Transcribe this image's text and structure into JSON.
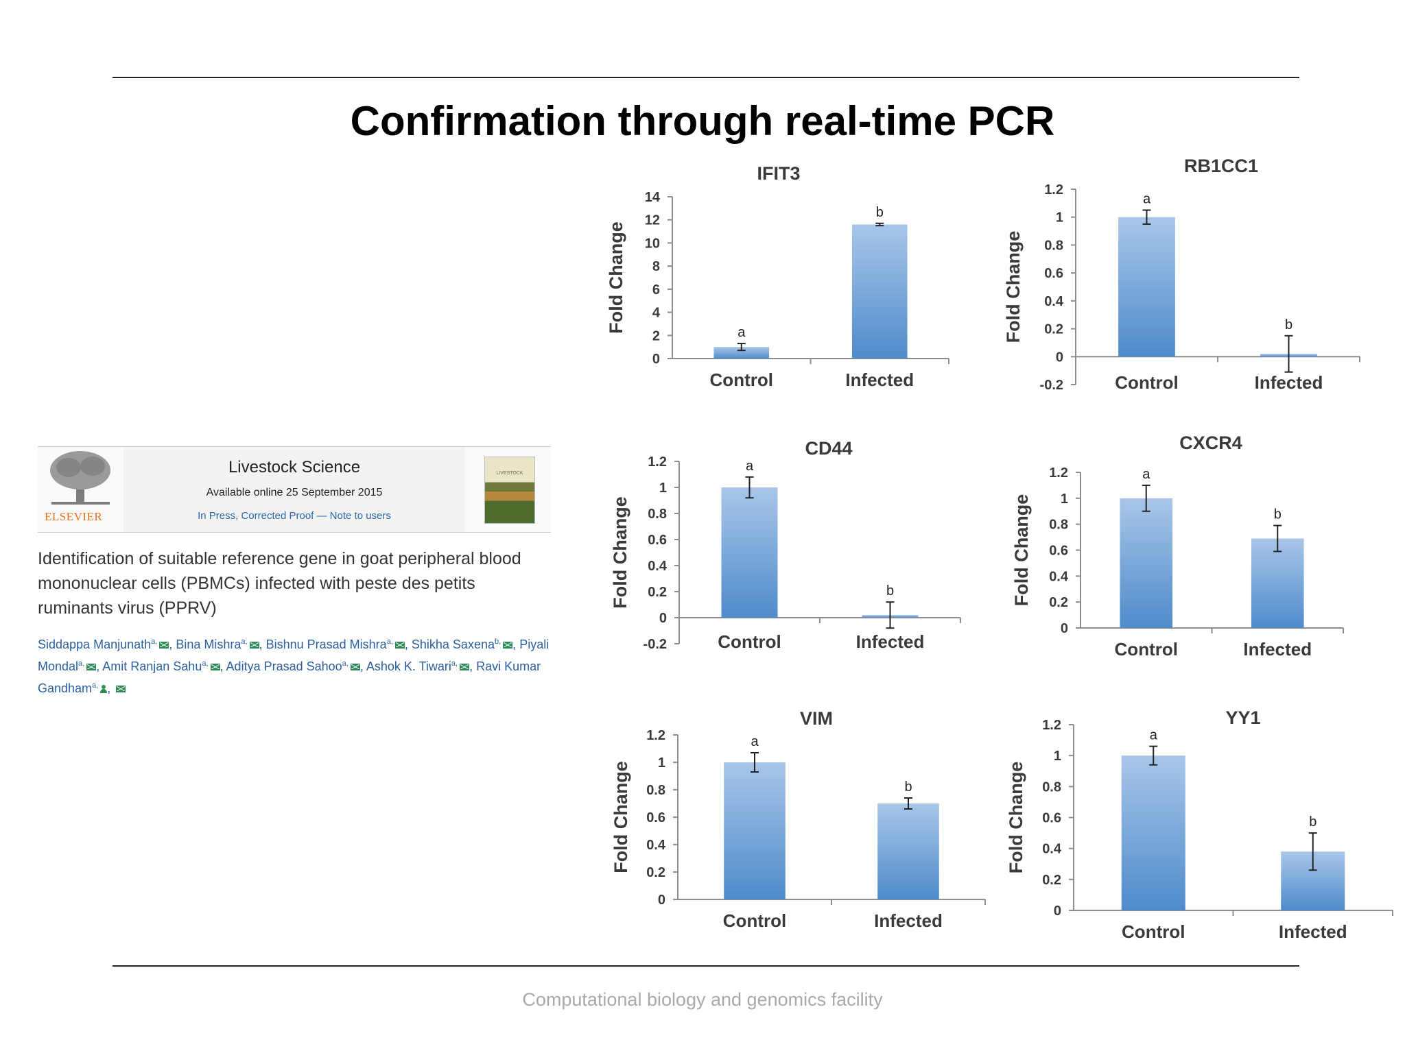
{
  "slide": {
    "title": "Confirmation through real-time PCR",
    "footer": "Computational biology and genomics facility"
  },
  "journal": {
    "publisher": "ELSEVIER",
    "name": "Livestock Science",
    "available": "Available online 25 September 2015",
    "press": "In Press, Corrected Proof — Note to users",
    "cover_text": "LIVESTOCK"
  },
  "paper": {
    "title": "Identification of suitable reference gene in goat peripheral blood mononuclear cells (PBMCs) infected with peste des petits ruminants virus (PPRV)",
    "authors": [
      {
        "name": "Siddappa Manjunath",
        "sup": "a,"
      },
      {
        "name": "Bina Mishra",
        "sup": "a,"
      },
      {
        "name": "Bishnu Prasad Mishra",
        "sup": "a,"
      },
      {
        "name": "Shikha Saxena",
        "sup": "b,"
      },
      {
        "name": "Piyali Mondal",
        "sup": "a,"
      },
      {
        "name": "Amit Ranjan Sahu",
        "sup": "a,"
      },
      {
        "name": "Aditya Prasad Sahoo",
        "sup": "a,"
      },
      {
        "name": "Ashok K. Tiwari",
        "sup": "a,"
      },
      {
        "name": "Ravi Kumar Gandham",
        "sup": "a,"
      }
    ]
  },
  "colors": {
    "bar_light": "#a9c6e8",
    "bar_dark": "#4f8bcb",
    "axis": "#8c8c8c",
    "text": "#3a3a3a"
  },
  "chart_data": [
    {
      "type": "bar",
      "title": "IFIT3",
      "ylabel": "Fold Change",
      "categories": [
        "Control",
        "Infected"
      ],
      "values": [
        1,
        11.6
      ],
      "errors": [
        0.3,
        0.1
      ],
      "annotations": [
        "a",
        "b"
      ],
      "ylim": [
        0,
        14
      ],
      "ticks": [
        0,
        2,
        4,
        6,
        8,
        10,
        12,
        14
      ],
      "tick_labels": [
        "0",
        "2",
        "4",
        "6",
        "8",
        "10",
        "12",
        "14"
      ]
    },
    {
      "type": "bar",
      "title": "RB1CC1",
      "ylabel": "Fold Change",
      "categories": [
        "Control",
        "Infected"
      ],
      "values": [
        1,
        0.02
      ],
      "errors": [
        0.05,
        0.13
      ],
      "annotations": [
        "a",
        "b"
      ],
      "ylim": [
        -0.2,
        1.2
      ],
      "ticks": [
        -0.2,
        0,
        0.2,
        0.4,
        0.6,
        0.8,
        1,
        1.2
      ],
      "tick_labels": [
        "-0.2",
        "0",
        "0.2",
        "0.4",
        "0.6",
        "0.8",
        "1",
        "1.2"
      ]
    },
    {
      "type": "bar",
      "title": "CD44",
      "ylabel": "Fold Change",
      "categories": [
        "Control",
        "Infected"
      ],
      "values": [
        1,
        0.02
      ],
      "errors": [
        0.08,
        0.1
      ],
      "annotations": [
        "a",
        "b"
      ],
      "ylim": [
        -0.2,
        1.2
      ],
      "ticks": [
        -0.2,
        0,
        0.2,
        0.4,
        0.6,
        0.8,
        1,
        1.2
      ],
      "tick_labels": [
        "-0.2",
        "0",
        "0.2",
        "0.4",
        "0.6",
        "0.8",
        "1",
        "1.2"
      ]
    },
    {
      "type": "bar",
      "title": "CXCR4",
      "ylabel": "Fold Change",
      "categories": [
        "Control",
        "Infected"
      ],
      "values": [
        1,
        0.69
      ],
      "errors": [
        0.1,
        0.1
      ],
      "annotations": [
        "a",
        "b"
      ],
      "ylim": [
        0,
        1.2
      ],
      "ticks": [
        0,
        0.2,
        0.4,
        0.6,
        0.8,
        1,
        1.2
      ],
      "tick_labels": [
        "0",
        "0.2",
        "0.4",
        "0.6",
        "0.8",
        "1",
        "1.2"
      ]
    },
    {
      "type": "bar",
      "title": "VIM",
      "ylabel": "Fold Change",
      "categories": [
        "Control",
        "Infected"
      ],
      "values": [
        1,
        0.7
      ],
      "errors": [
        0.07,
        0.04
      ],
      "annotations": [
        "a",
        "b"
      ],
      "ylim": [
        0,
        1.2
      ],
      "ticks": [
        0,
        0.2,
        0.4,
        0.6,
        0.8,
        1,
        1.2
      ],
      "tick_labels": [
        "0",
        "0.2",
        "0.4",
        "0.6",
        "0.8",
        "1",
        "1.2"
      ]
    },
    {
      "type": "bar",
      "title": "YY1",
      "ylabel": "Fold Change",
      "categories": [
        "Control",
        "Infected"
      ],
      "values": [
        1,
        0.38
      ],
      "errors": [
        0.06,
        0.12
      ],
      "annotations": [
        "a",
        "b"
      ],
      "ylim": [
        0,
        1.2
      ],
      "ticks": [
        0,
        0.2,
        0.4,
        0.6,
        0.8,
        1,
        1.2
      ],
      "tick_labels": [
        "0",
        "0.2",
        "0.4",
        "0.6",
        "0.8",
        "1",
        "1.2"
      ]
    }
  ]
}
